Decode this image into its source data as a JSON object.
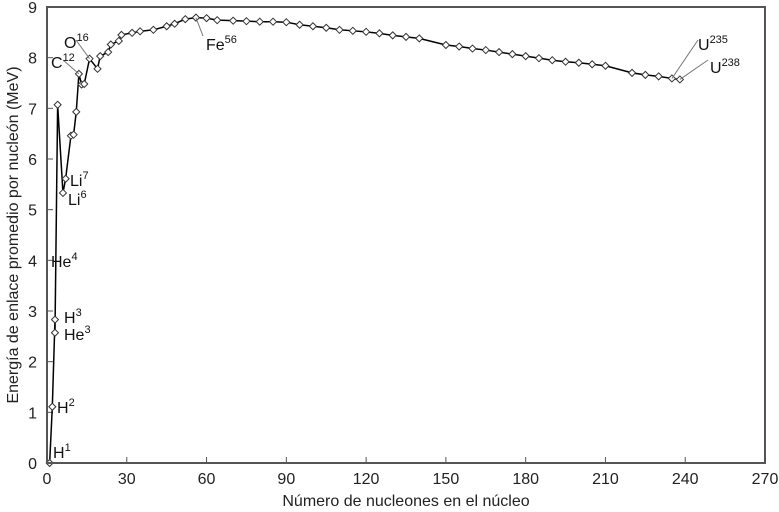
{
  "chart_data": {
    "type": "line",
    "title": "",
    "xlabel": "Número de nucleones en el núcleo",
    "ylabel": "Energía de enlace promedio por nucleón (MeV)",
    "xlim": [
      0,
      270
    ],
    "ylim": [
      0,
      9
    ],
    "xticks": [
      "0",
      "30",
      "60",
      "90",
      "120",
      "150",
      "180",
      "210",
      "240",
      "270"
    ],
    "yticks": [
      "0",
      "1",
      "2",
      "3",
      "4",
      "5",
      "6",
      "7",
      "8",
      "9"
    ],
    "grid": false,
    "line_color": "#000000",
    "marker": "diamond",
    "marker_fill": "#ffffff",
    "points": [
      [
        1,
        0
      ],
      [
        2,
        1.11
      ],
      [
        3,
        2.83
      ],
      [
        3,
        2.57
      ],
      [
        4,
        7.07
      ],
      [
        6,
        5.33
      ],
      [
        7,
        5.61
      ],
      [
        9,
        6.46
      ],
      [
        10,
        6.48
      ],
      [
        11,
        6.93
      ],
      [
        12,
        7.68
      ],
      [
        13,
        7.47
      ],
      [
        14,
        7.48
      ],
      [
        16,
        7.98
      ],
      [
        19,
        7.78
      ],
      [
        20,
        8.03
      ],
      [
        23,
        8.11
      ],
      [
        24,
        8.26
      ],
      [
        27,
        8.33
      ],
      [
        28,
        8.45
      ],
      [
        32,
        8.49
      ],
      [
        35,
        8.52
      ],
      [
        40,
        8.55
      ],
      [
        45,
        8.62
      ],
      [
        48,
        8.67
      ],
      [
        52,
        8.76
      ],
      [
        56,
        8.79
      ],
      [
        60,
        8.78
      ],
      [
        64,
        8.74
      ],
      [
        70,
        8.73
      ],
      [
        75,
        8.72
      ],
      [
        80,
        8.71
      ],
      [
        85,
        8.71
      ],
      [
        90,
        8.7
      ],
      [
        95,
        8.65
      ],
      [
        100,
        8.62
      ],
      [
        105,
        8.59
      ],
      [
        110,
        8.55
      ],
      [
        115,
        8.53
      ],
      [
        120,
        8.51
      ],
      [
        125,
        8.48
      ],
      [
        130,
        8.44
      ],
      [
        135,
        8.41
      ],
      [
        140,
        8.38
      ],
      [
        150,
        8.25
      ],
      [
        155,
        8.22
      ],
      [
        160,
        8.18
      ],
      [
        165,
        8.15
      ],
      [
        170,
        8.11
      ],
      [
        175,
        8.07
      ],
      [
        180,
        8.03
      ],
      [
        185,
        7.99
      ],
      [
        190,
        7.95
      ],
      [
        195,
        7.92
      ],
      [
        200,
        7.9
      ],
      [
        205,
        7.87
      ],
      [
        210,
        7.84
      ],
      [
        220,
        7.7
      ],
      [
        225,
        7.66
      ],
      [
        230,
        7.63
      ],
      [
        235,
        7.59
      ],
      [
        238,
        7.57
      ]
    ],
    "annotations": [
      {
        "base": "H",
        "sup": "1",
        "x": 1,
        "y": 0
      },
      {
        "base": "H",
        "sup": "2",
        "x": 2,
        "y": 1.11
      },
      {
        "base": "H",
        "sup": "3",
        "x": 3,
        "y": 2.83
      },
      {
        "base": "He",
        "sup": "3",
        "x": 3,
        "y": 2.57
      },
      {
        "base": "He",
        "sup": "4",
        "x": 4,
        "y": 7.07
      },
      {
        "base": "Li",
        "sup": "7",
        "x": 7,
        "y": 5.61
      },
      {
        "base": "Li",
        "sup": "6",
        "x": 6,
        "y": 5.33
      },
      {
        "base": "C",
        "sup": "12",
        "x": 12,
        "y": 7.68
      },
      {
        "base": "O",
        "sup": "16",
        "x": 16,
        "y": 7.98
      },
      {
        "base": "Fe",
        "sup": "56",
        "x": 56,
        "y": 8.79
      },
      {
        "base": "U",
        "sup": "235",
        "x": 235,
        "y": 7.59
      },
      {
        "base": "U",
        "sup": "238",
        "x": 238,
        "y": 7.57
      }
    ]
  }
}
